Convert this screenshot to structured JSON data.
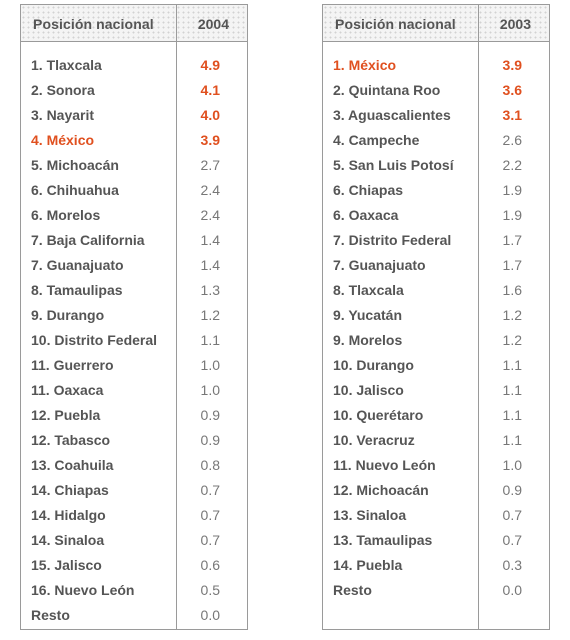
{
  "accent_color": "#e0501f",
  "tables": [
    {
      "header_label": "Posición nacional",
      "year": "2004",
      "rows": [
        {
          "name": "1. Tlaxcala",
          "value": "4.9",
          "highlight": "value"
        },
        {
          "name": "2. Sonora",
          "value": "4.1",
          "highlight": "value"
        },
        {
          "name": "3. Nayarit",
          "value": "4.0",
          "highlight": "value"
        },
        {
          "name": "4. México",
          "value": "3.9",
          "highlight": "all"
        },
        {
          "name": "5. Michoacán",
          "value": "2.7",
          "highlight": "none"
        },
        {
          "name": "6. Chihuahua",
          "value": "2.4",
          "highlight": "none"
        },
        {
          "name": "6. Morelos",
          "value": "2.4",
          "highlight": "none"
        },
        {
          "name": "7. Baja California",
          "value": "1.4",
          "highlight": "none"
        },
        {
          "name": "7. Guanajuato",
          "value": "1.4",
          "highlight": "none"
        },
        {
          "name": "8. Tamaulipas",
          "value": "1.3",
          "highlight": "none"
        },
        {
          "name": "9. Durango",
          "value": "1.2",
          "highlight": "none"
        },
        {
          "name": "10. Distrito Federal",
          "value": "1.1",
          "highlight": "none"
        },
        {
          "name": "11. Guerrero",
          "value": "1.0",
          "highlight": "none"
        },
        {
          "name": "11. Oaxaca",
          "value": "1.0",
          "highlight": "none"
        },
        {
          "name": "12. Puebla",
          "value": "0.9",
          "highlight": "none"
        },
        {
          "name": "12. Tabasco",
          "value": "0.9",
          "highlight": "none"
        },
        {
          "name": "13. Coahuila",
          "value": "0.8",
          "highlight": "none"
        },
        {
          "name": "14. Chiapas",
          "value": "0.7",
          "highlight": "none"
        },
        {
          "name": "14. Hidalgo",
          "value": "0.7",
          "highlight": "none"
        },
        {
          "name": "14. Sinaloa",
          "value": "0.7",
          "highlight": "none"
        },
        {
          "name": "15. Jalisco",
          "value": "0.6",
          "highlight": "none"
        },
        {
          "name": "16. Nuevo León",
          "value": "0.5",
          "highlight": "none"
        },
        {
          "name": "Resto",
          "value": "0.0",
          "highlight": "none"
        }
      ]
    },
    {
      "header_label": "Posición nacional",
      "year": "2003",
      "rows": [
        {
          "name": "1. México",
          "value": "3.9",
          "highlight": "all"
        },
        {
          "name": "2. Quintana Roo",
          "value": "3.6",
          "highlight": "value"
        },
        {
          "name": "3. Aguascalientes",
          "value": "3.1",
          "highlight": "value"
        },
        {
          "name": "4. Campeche",
          "value": "2.6",
          "highlight": "none"
        },
        {
          "name": "5. San Luis Potosí",
          "value": "2.2",
          "highlight": "none"
        },
        {
          "name": "6. Chiapas",
          "value": "1.9",
          "highlight": "none"
        },
        {
          "name": "6. Oaxaca",
          "value": "1.9",
          "highlight": "none"
        },
        {
          "name": "7. Distrito Federal",
          "value": "1.7",
          "highlight": "none"
        },
        {
          "name": "7. Guanajuato",
          "value": "1.7",
          "highlight": "none"
        },
        {
          "name": "8. Tlaxcala",
          "value": "1.6",
          "highlight": "none"
        },
        {
          "name": "9. Yucatán",
          "value": "1.2",
          "highlight": "none"
        },
        {
          "name": "9. Morelos",
          "value": "1.2",
          "highlight": "none"
        },
        {
          "name": "10. Durango",
          "value": "1.1",
          "highlight": "none"
        },
        {
          "name": "10. Jalisco",
          "value": "1.1",
          "highlight": "none"
        },
        {
          "name": "10. Querétaro",
          "value": "1.1",
          "highlight": "none"
        },
        {
          "name": "10. Veracruz",
          "value": "1.1",
          "highlight": "none"
        },
        {
          "name": "11. Nuevo León",
          "value": "1.0",
          "highlight": "none"
        },
        {
          "name": "12. Michoacán",
          "value": "0.9",
          "highlight": "none"
        },
        {
          "name": "13. Sinaloa",
          "value": "0.7",
          "highlight": "none"
        },
        {
          "name": "13. Tamaulipas",
          "value": "0.7",
          "highlight": "none"
        },
        {
          "name": "14. Puebla",
          "value": "0.3",
          "highlight": "none"
        },
        {
          "name": "Resto",
          "value": "0.0",
          "highlight": "none"
        }
      ]
    }
  ]
}
